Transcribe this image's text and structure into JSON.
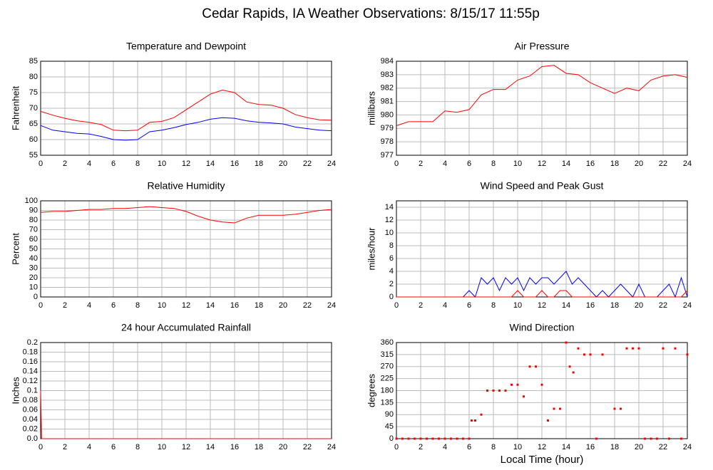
{
  "title": "Cedar Rapids, IA Weather Observations: 8/15/17 11:55p",
  "chart_data": [
    {
      "type": "line",
      "title": "Temperature and Dewpoint",
      "ylabel": "Fahrenheit",
      "x": [
        0,
        1,
        2,
        3,
        4,
        5,
        6,
        7,
        8,
        9,
        10,
        11,
        12,
        13,
        14,
        15,
        16,
        17,
        18,
        19,
        20,
        21,
        22,
        23,
        24
      ],
      "series": [
        {
          "color": "#ff0000",
          "values": [
            69,
            67.8,
            66.8,
            66,
            65.5,
            64.8,
            63,
            62.8,
            63,
            65.5,
            65.8,
            67,
            69.5,
            72,
            74.5,
            75.8,
            75,
            72,
            71.2,
            71,
            70,
            68,
            67,
            66.3,
            66.2
          ]
        },
        {
          "color": "#0000ff",
          "values": [
            64.5,
            63,
            62.5,
            62,
            61.8,
            61,
            60,
            59.8,
            60,
            62.5,
            63,
            63.8,
            64.8,
            65.5,
            66.5,
            67,
            66.8,
            66,
            65.5,
            65.3,
            65,
            64,
            63.5,
            63,
            62.8
          ]
        }
      ],
      "xlim": [
        0,
        24
      ],
      "xticks": [
        0,
        2,
        4,
        6,
        8,
        10,
        12,
        14,
        16,
        18,
        20,
        22,
        24
      ],
      "ylim": [
        55,
        85
      ],
      "yticks": [
        55,
        60,
        65,
        70,
        75,
        80,
        85
      ],
      "grid": true
    },
    {
      "type": "line",
      "title": "Air Pressure",
      "ylabel": "millibars",
      "x": [
        0,
        1,
        2,
        3,
        4,
        5,
        6,
        7,
        8,
        9,
        10,
        11,
        12,
        13,
        14,
        15,
        16,
        17,
        18,
        19,
        20,
        21,
        22,
        23,
        24
      ],
      "series": [
        {
          "color": "#ff0000",
          "values": [
            979.2,
            979.5,
            979.5,
            979.5,
            980.3,
            980.2,
            980.4,
            981.5,
            981.9,
            981.9,
            982.6,
            982.9,
            983.6,
            983.7,
            983.1,
            983.0,
            982.4,
            982.0,
            981.6,
            982.0,
            981.8,
            982.6,
            982.9,
            983.0,
            982.8
          ]
        }
      ],
      "xlim": [
        0,
        24
      ],
      "xticks": [
        0,
        2,
        4,
        6,
        8,
        10,
        12,
        14,
        16,
        18,
        20,
        22,
        24
      ],
      "ylim": [
        977,
        984
      ],
      "yticks": [
        977,
        978,
        979,
        980,
        981,
        982,
        983,
        984
      ],
      "grid": true
    },
    {
      "type": "line",
      "title": "Relative Humidity",
      "ylabel": "Percent",
      "x": [
        0,
        1,
        2,
        3,
        4,
        5,
        6,
        7,
        8,
        9,
        10,
        11,
        12,
        13,
        14,
        15,
        16,
        17,
        18,
        19,
        20,
        21,
        22,
        23,
        24
      ],
      "series": [
        {
          "color": "#ff0000",
          "values": [
            88,
            89,
            89,
            90,
            91,
            91,
            92,
            92,
            93,
            94,
            93,
            92,
            89,
            84,
            80,
            78,
            77,
            82,
            85,
            85,
            85,
            86,
            88,
            90,
            91
          ]
        }
      ],
      "xlim": [
        0,
        24
      ],
      "xticks": [
        0,
        2,
        4,
        6,
        8,
        10,
        12,
        14,
        16,
        18,
        20,
        22,
        24
      ],
      "ylim": [
        0,
        100
      ],
      "yticks": [
        0,
        10,
        20,
        30,
        40,
        50,
        60,
        70,
        80,
        90,
        100
      ],
      "grid": true
    },
    {
      "type": "line",
      "title": "Wind Speed and Peak Gust",
      "ylabel": "miles/hour",
      "x": [
        0,
        0.5,
        1,
        1.5,
        2,
        2.5,
        3,
        3.5,
        4,
        4.5,
        5,
        5.5,
        6,
        6.5,
        7,
        7.5,
        8,
        8.5,
        9,
        9.5,
        10,
        10.5,
        11,
        11.5,
        12,
        12.5,
        13,
        13.5,
        14,
        14.5,
        15,
        15.5,
        16,
        16.5,
        17,
        17.5,
        18,
        18.5,
        19,
        19.5,
        20,
        20.5,
        21,
        21.5,
        22,
        22.5,
        23,
        23.5,
        24
      ],
      "series": [
        {
          "color": "#0000ff",
          "values": [
            0,
            0,
            0,
            0,
            0,
            0,
            0,
            0,
            0,
            0,
            0,
            0,
            1,
            0,
            3,
            2,
            3,
            1,
            3,
            2,
            3,
            1,
            3,
            2,
            3,
            3,
            2,
            3,
            4,
            2,
            3,
            2,
            1,
            0,
            1,
            0,
            1,
            2,
            1,
            0,
            2,
            0,
            0,
            0,
            1,
            2,
            0,
            3,
            0
          ]
        },
        {
          "color": "#ff0000",
          "values": [
            0,
            0,
            0,
            0,
            0,
            0,
            0,
            0,
            0,
            0,
            0,
            0,
            0,
            0,
            0,
            0,
            0,
            0,
            0,
            0,
            1,
            0,
            0,
            0,
            1,
            0,
            0,
            1,
            1,
            0,
            0,
            0,
            0,
            0,
            0,
            0,
            0,
            0,
            0,
            0,
            0,
            0,
            0,
            0,
            0,
            0,
            0,
            0,
            1
          ]
        }
      ],
      "xlim": [
        0,
        24
      ],
      "xticks": [
        0,
        2,
        4,
        6,
        8,
        10,
        12,
        14,
        16,
        18,
        20,
        22,
        24
      ],
      "ylim": [
        0,
        15
      ],
      "yticks": [
        0,
        2,
        4,
        6,
        8,
        10,
        12,
        14
      ],
      "grid": true
    },
    {
      "type": "line",
      "title": "24 hour Accumulated Rainfall",
      "ylabel": "Inches",
      "x": [
        0,
        0.08,
        24
      ],
      "series": [
        {
          "color": "#ff0000",
          "values": [
            0.1,
            0,
            0
          ]
        }
      ],
      "xlim": [
        0,
        24
      ],
      "xticks": [
        0,
        2,
        4,
        6,
        8,
        10,
        12,
        14,
        16,
        18,
        20,
        22,
        24
      ],
      "ylim": [
        0,
        0.2
      ],
      "yticks": [
        {
          "value": 0,
          "label": "0.0"
        },
        0.02,
        0.04,
        0.06,
        0.08,
        0.1,
        0.12,
        0.14,
        0.16,
        0.18,
        0.2
      ],
      "grid": true
    },
    {
      "type": "scatter",
      "title": "Wind Direction",
      "ylabel": "degrees",
      "xlabel": "Local Time (hour)",
      "x": [
        0,
        0.5,
        1,
        1.5,
        2,
        2.5,
        3,
        3.5,
        4,
        4.5,
        5,
        5.5,
        6,
        6.2,
        6.5,
        7,
        7.5,
        8,
        8.5,
        9,
        9.5,
        10,
        10.5,
        11,
        11.5,
        12,
        12.5,
        13,
        13.5,
        14,
        14.3,
        14.6,
        15,
        15.5,
        16,
        16.5,
        17,
        18,
        18.5,
        19,
        19.5,
        20,
        20.5,
        21,
        21.5,
        22,
        22.5,
        23,
        23.5,
        24
      ],
      "series": [
        {
          "color": "#ff0000",
          "values": [
            0,
            0,
            0,
            0,
            0,
            0,
            0,
            0,
            0,
            0,
            0,
            0,
            0,
            68,
            68,
            90,
            180,
            180,
            180,
            180,
            202,
            202,
            158,
            270,
            270,
            202,
            68,
            112,
            112,
            360,
            270,
            248,
            338,
            315,
            315,
            0,
            315,
            112,
            112,
            338,
            338,
            338,
            0,
            0,
            0,
            338,
            0,
            338,
            0,
            315
          ]
        }
      ],
      "xlim": [
        0,
        24
      ],
      "xticks": [
        0,
        2,
        4,
        6,
        8,
        10,
        12,
        14,
        16,
        18,
        20,
        22,
        24
      ],
      "ylim": [
        0,
        360
      ],
      "yticks": [
        0,
        45,
        90,
        135,
        180,
        225,
        270,
        315,
        360
      ],
      "grid": true
    }
  ]
}
